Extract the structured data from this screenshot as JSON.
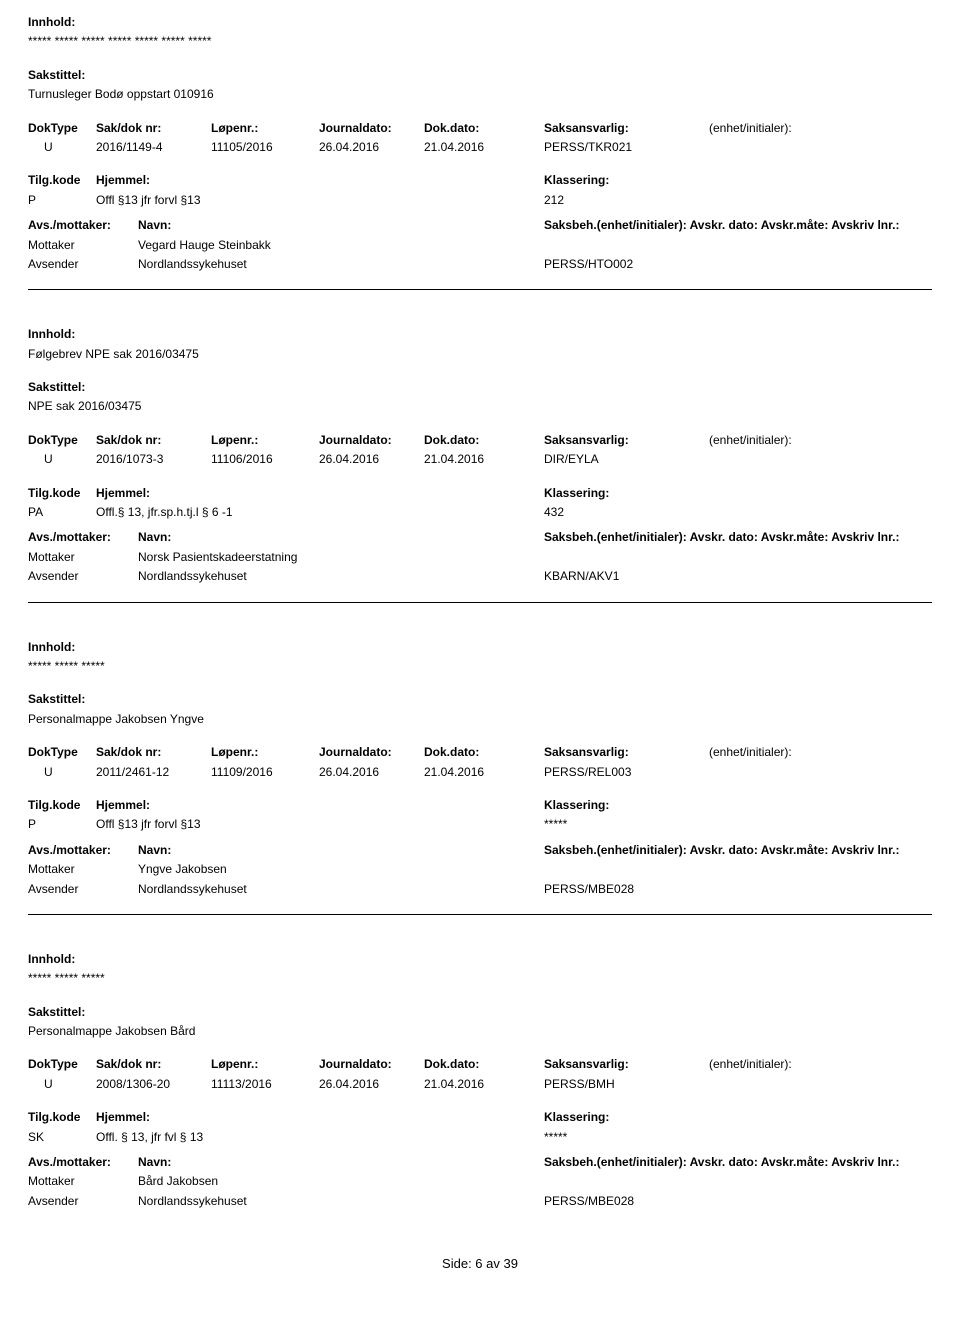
{
  "labels": {
    "innhold": "Innhold:",
    "sakstittel": "Sakstittel:",
    "doktype": "DokType",
    "sakdok": "Sak/dok nr:",
    "lopenr": "Løpenr.:",
    "journaldato": "Journaldato:",
    "dokdato": "Dok.dato:",
    "saksansvarlig": "Saksansvarlig:",
    "enhet": "(enhet/initialer):",
    "tilgkode": "Tilg.kode",
    "hjemmel": "Hjemmel:",
    "klassering": "Klassering:",
    "avsmottaker": "Avs./mottaker:",
    "navn": "Navn:",
    "saksbeh_line": "Saksbeh.(enhet/initialer): Avskr. dato:  Avskr.måte:  Avskriv lnr.:"
  },
  "records": [
    {
      "innhold": "***** ***** ***** ***** ***** ***** *****",
      "sakstittel": "Turnusleger Bodø oppstart 010916",
      "doktype": "U",
      "sakdok": "2016/1149-4",
      "lopenr": "11105/2016",
      "journaldato": "26.04.2016",
      "dokdato": "21.04.2016",
      "saksansvarlig": "PERSS/TKR021",
      "tilgkode": "P",
      "hjemmel": "Offl §13 jfr forvl §13",
      "klassering": "212",
      "parties": [
        {
          "role": "Mottaker",
          "navn": "Vegard Hauge Steinbakk",
          "code": ""
        },
        {
          "role": "Avsender",
          "navn": "Nordlandssykehuset",
          "code": "PERSS/HTO002"
        }
      ],
      "border": true
    },
    {
      "innhold": "Følgebrev NPE sak 2016/03475",
      "sakstittel": "NPE sak 2016/03475",
      "doktype": "U",
      "sakdok": "2016/1073-3",
      "lopenr": "11106/2016",
      "journaldato": "26.04.2016",
      "dokdato": "21.04.2016",
      "saksansvarlig": "DIR/EYLA",
      "tilgkode": "PA",
      "hjemmel": "Offl.§ 13, jfr.sp.h.tj.l § 6 -1",
      "klassering": "432",
      "parties": [
        {
          "role": "Mottaker",
          "navn": "Norsk Pasientskadeerstatning",
          "code": ""
        },
        {
          "role": "Avsender",
          "navn": "Nordlandssykehuset",
          "code": "KBARN/AKV1"
        }
      ],
      "border": true
    },
    {
      "innhold": "***** ***** *****",
      "sakstittel": "Personalmappe Jakobsen Yngve",
      "doktype": "U",
      "sakdok": "2011/2461-12",
      "lopenr": "11109/2016",
      "journaldato": "26.04.2016",
      "dokdato": "21.04.2016",
      "saksansvarlig": "PERSS/REL003",
      "tilgkode": "P",
      "hjemmel": "Offl §13 jfr forvl §13",
      "klassering": "*****",
      "parties": [
        {
          "role": "Mottaker",
          "navn": "Yngve Jakobsen",
          "code": ""
        },
        {
          "role": "Avsender",
          "navn": "Nordlandssykehuset",
          "code": "PERSS/MBE028"
        }
      ],
      "border": true
    },
    {
      "innhold": "***** ***** *****",
      "sakstittel": "Personalmappe Jakobsen Bård",
      "doktype": "U",
      "sakdok": "2008/1306-20",
      "lopenr": "11113/2016",
      "journaldato": "26.04.2016",
      "dokdato": "21.04.2016",
      "saksansvarlig": "PERSS/BMH",
      "tilgkode": "SK",
      "hjemmel": "Offl. § 13, jfr fvl § 13",
      "klassering": "*****",
      "parties": [
        {
          "role": "Mottaker",
          "navn": "Bård Jakobsen",
          "code": ""
        },
        {
          "role": "Avsender",
          "navn": "Nordlandssykehuset",
          "code": "PERSS/MBE028"
        }
      ],
      "border": false
    }
  ],
  "footer": "Side: 6 av 39"
}
